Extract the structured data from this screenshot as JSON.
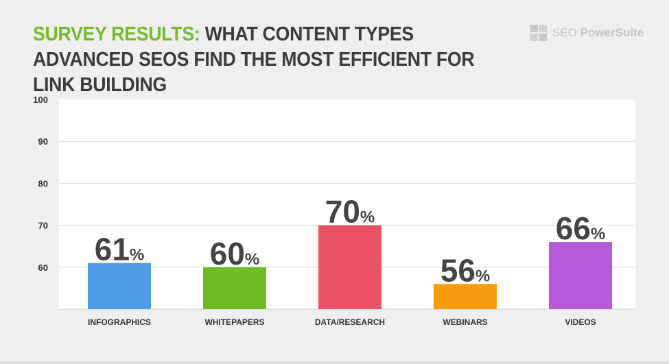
{
  "header": {
    "title_accent": "SURVEY RESULTS:",
    "title_rest": " WHAT CONTENT TYPES ADVANCED SEOS FIND THE MOST EFFICIENT FOR LINK BUILDING"
  },
  "brand": {
    "name_light": "SEO ",
    "name_bold": "PowerSuite"
  },
  "colors": {
    "accent": "#74bb2a",
    "text_dark": "#3b3b3b",
    "bar_infographics": "#4f9de9",
    "bar_whitepapers": "#6fbd24",
    "bar_data_research": "#ec5364",
    "bar_webinars": "#f89b0e",
    "bar_videos": "#b65ad8"
  },
  "chart_data": {
    "type": "bar",
    "categories": [
      "INFOGRAPHICS",
      "WHITEPAPERS",
      "DATA/RESEARCH",
      "WEBINARS",
      "VIDEOS"
    ],
    "values": [
      61,
      60,
      70,
      56,
      66
    ],
    "value_labels": [
      "61",
      "60",
      "70",
      "56",
      "66"
    ],
    "value_suffix": "%",
    "bar_colors": [
      "#4f9de9",
      "#6fbd24",
      "#ec5364",
      "#f89b0e",
      "#b65ad8"
    ],
    "ylim": [
      50,
      100
    ],
    "yticks": [
      60,
      70,
      80,
      90,
      100
    ],
    "ytick_labels": [
      "60",
      "70",
      "80",
      "90",
      "100"
    ],
    "grid": true,
    "title": "",
    "xlabel": "",
    "ylabel": ""
  }
}
